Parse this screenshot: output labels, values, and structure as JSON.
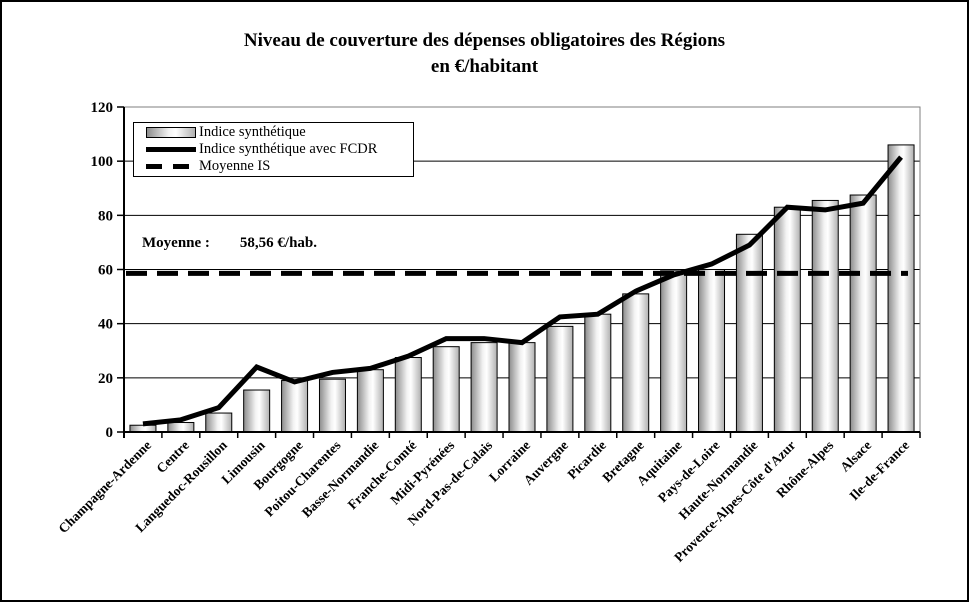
{
  "chart": {
    "title_line1": "Niveau de couverture des dépenses obligatoires des Régions",
    "title_line2": "en €/habitant"
  },
  "chart_data": {
    "type": "bar",
    "title": "Niveau de couverture des dépenses obligatoires des Régions en €/habitant",
    "categories": [
      "Champagne-Ardenne",
      "Centre",
      "Languedoc-Rousillon",
      "Limousin",
      "Bourgogne",
      "Poitou-Charentes",
      "Basse-Normandie",
      "Franche-Comté",
      "Midi-Pyrénées",
      "Nord-Pas-de-Calais",
      "Lorraine",
      "Auvergne",
      "Picardie",
      "Bretagne",
      "Aquitaine",
      "Pays-de-Loire",
      "Haute-Normandie",
      "Provence-Alpes-Côte d'Azur",
      "Rhône-Alpes",
      "Alsace",
      "Ile-de-France"
    ],
    "series": [
      {
        "name": "Indice synthétique",
        "type": "bar",
        "values": [
          2.5,
          3.5,
          7,
          15.5,
          19,
          19.5,
          23,
          27.5,
          31.5,
          33,
          33,
          39,
          43.5,
          51,
          59.5,
          60,
          73,
          83,
          85.5,
          87.5,
          106
        ]
      },
      {
        "name": "Indice synthétique avec FCDR",
        "type": "line",
        "values": [
          3,
          4.5,
          9,
          24,
          18.5,
          22,
          23.5,
          28,
          34.5,
          34.5,
          33,
          42.5,
          43.5,
          52,
          58,
          62,
          69,
          83,
          82,
          84.5,
          101.5
        ]
      },
      {
        "name": "Moyenne IS",
        "type": "dashed-line",
        "value": 58.56
      }
    ],
    "ylim": [
      0,
      120
    ],
    "yticks": [
      0,
      20,
      40,
      60,
      80,
      100,
      120
    ],
    "grid": true,
    "legend_position": "top-left",
    "x_tick_label_rotation": 45,
    "annotation": {
      "label": "Moyenne :",
      "value": "58,56 €/hab."
    },
    "colors": {
      "line": "#000000",
      "mean_line": "#000000",
      "bar_edge": "#000000",
      "plot_border": "#7f7f7f",
      "gridline": "#000000",
      "bar_gradient": [
        "#8c8c8c",
        "#f2f2f2",
        "#ffffff",
        "#b0b0b0"
      ]
    }
  }
}
